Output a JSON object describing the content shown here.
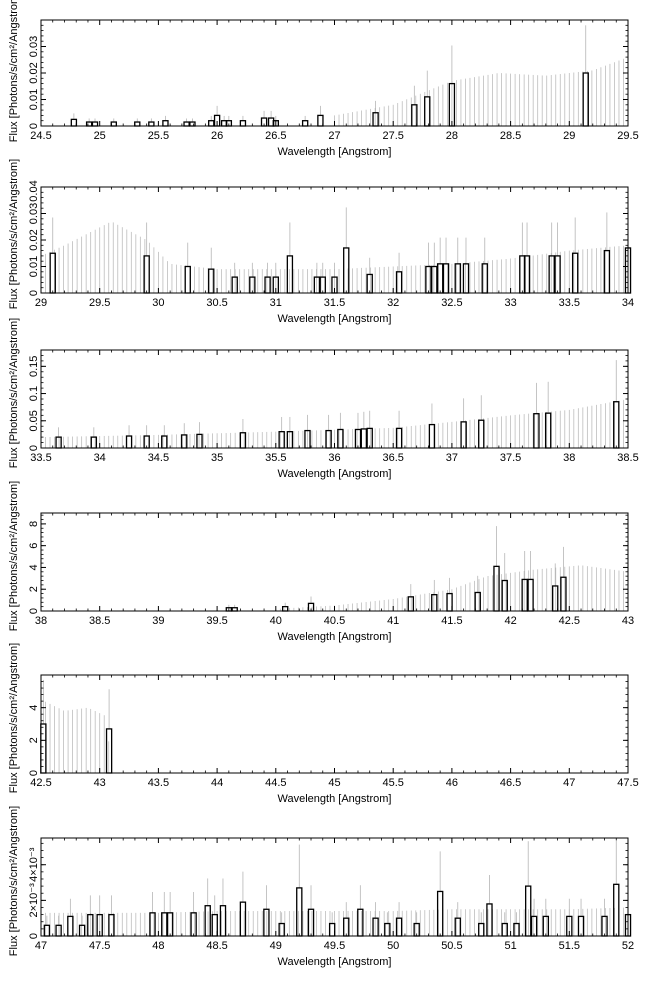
{
  "chart_data": [
    {
      "type": "bar",
      "xlabel": "Wavelength [Angstrom]",
      "ylabel": "Flux [Photons/s/cm²/Angstrom]",
      "xlim": [
        24.5,
        29.5
      ],
      "ylim": [
        0,
        0.04
      ],
      "xticks": [
        "24.5",
        "25",
        "25.5",
        "26",
        "26.5",
        "27",
        "27.5",
        "28",
        "28.5",
        "29",
        "29.5"
      ],
      "yticks": [
        "0",
        "0.01",
        "0.02",
        "0.03"
      ],
      "ytick_values": [
        0,
        0.01,
        0.02,
        0.03
      ],
      "bars": [
        [
          24.78,
          0.0025
        ],
        [
          24.91,
          0.0015
        ],
        [
          24.96,
          0.0015
        ],
        [
          25.12,
          0.0015
        ],
        [
          25.32,
          0.0015
        ],
        [
          25.44,
          0.0015
        ],
        [
          25.56,
          0.002
        ],
        [
          25.74,
          0.0015
        ],
        [
          25.79,
          0.0015
        ],
        [
          25.95,
          0.002
        ],
        [
          26.0,
          0.004
        ],
        [
          26.06,
          0.002
        ],
        [
          26.1,
          0.002
        ],
        [
          26.22,
          0.002
        ],
        [
          26.4,
          0.003
        ],
        [
          26.46,
          0.003
        ],
        [
          26.5,
          0.002
        ],
        [
          26.75,
          0.002
        ],
        [
          26.88,
          0.004
        ],
        [
          27.35,
          0.005
        ],
        [
          27.68,
          0.008
        ],
        [
          27.79,
          0.011
        ],
        [
          28.0,
          0.016
        ],
        [
          29.14,
          0.02
        ]
      ],
      "upper_envelope": [
        [
          27.0,
          0.004
        ],
        [
          27.5,
          0.008
        ],
        [
          28.0,
          0.017
        ],
        [
          28.4,
          0.02
        ],
        [
          28.8,
          0.019
        ],
        [
          29.2,
          0.021
        ],
        [
          29.5,
          0.026
        ]
      ],
      "envelope_start": 27.0
    },
    {
      "type": "bar",
      "xlabel": "Wavelength [Angstrom]",
      "ylabel": "Flux [Photons/s/cm²/Angstrom]",
      "xlim": [
        29,
        34
      ],
      "ylim": [
        0,
        0.04
      ],
      "xticks": [
        "29",
        "29.5",
        "30",
        "30.5",
        "31",
        "31.5",
        "32",
        "32.5",
        "33",
        "33.5",
        "34"
      ],
      "yticks": [
        "0",
        "0.01",
        "0.02",
        "0.03",
        "0.04"
      ],
      "ytick_values": [
        0,
        0.01,
        0.02,
        0.03,
        0.04
      ],
      "bars": [
        [
          29.1,
          0.015
        ],
        [
          29.9,
          0.014
        ],
        [
          30.25,
          0.01
        ],
        [
          30.45,
          0.009
        ],
        [
          30.65,
          0.006
        ],
        [
          30.8,
          0.006
        ],
        [
          30.93,
          0.006
        ],
        [
          31.0,
          0.006
        ],
        [
          31.12,
          0.014
        ],
        [
          31.35,
          0.006
        ],
        [
          31.4,
          0.006
        ],
        [
          31.5,
          0.006
        ],
        [
          31.6,
          0.017
        ],
        [
          31.8,
          0.007
        ],
        [
          32.05,
          0.008
        ],
        [
          32.3,
          0.01
        ],
        [
          32.35,
          0.01
        ],
        [
          32.4,
          0.011
        ],
        [
          32.45,
          0.011
        ],
        [
          32.55,
          0.011
        ],
        [
          32.62,
          0.011
        ],
        [
          32.78,
          0.011
        ],
        [
          33.1,
          0.014
        ],
        [
          33.14,
          0.014
        ],
        [
          33.35,
          0.014
        ],
        [
          33.4,
          0.014
        ],
        [
          33.55,
          0.015
        ],
        [
          33.82,
          0.016
        ],
        [
          34.0,
          0.017
        ]
      ],
      "upper_envelope": [
        [
          29.0,
          0.014
        ],
        [
          29.2,
          0.018
        ],
        [
          29.6,
          0.027
        ],
        [
          29.9,
          0.02
        ],
        [
          30.1,
          0.011
        ],
        [
          30.5,
          0.009
        ],
        [
          31.0,
          0.009
        ],
        [
          31.5,
          0.009
        ],
        [
          32.0,
          0.01
        ],
        [
          32.5,
          0.011
        ],
        [
          33.0,
          0.013
        ],
        [
          33.5,
          0.016
        ],
        [
          34.0,
          0.018
        ]
      ],
      "envelope_start": 29.0
    },
    {
      "type": "bar",
      "xlabel": "Wavelength [Angstrom]",
      "ylabel": "Flux [Photons/s/cm²/Angstrom]",
      "xlim": [
        33.5,
        38.5
      ],
      "ylim": [
        0,
        0.18
      ],
      "xticks": [
        "33.5",
        "34",
        "34.5",
        "35",
        "35.5",
        "36",
        "36.5",
        "37",
        "37.5",
        "38",
        "38.5"
      ],
      "yticks": [
        "0",
        "0.05",
        "0.1",
        "0.15"
      ],
      "ytick_values": [
        0,
        0.05,
        0.1,
        0.15
      ],
      "bars": [
        [
          33.65,
          0.02
        ],
        [
          33.95,
          0.02
        ],
        [
          34.25,
          0.022
        ],
        [
          34.4,
          0.022
        ],
        [
          34.55,
          0.022
        ],
        [
          34.72,
          0.024
        ],
        [
          34.85,
          0.025
        ],
        [
          35.22,
          0.028
        ],
        [
          35.55,
          0.03
        ],
        [
          35.62,
          0.03
        ],
        [
          35.77,
          0.032
        ],
        [
          35.95,
          0.032
        ],
        [
          36.05,
          0.034
        ],
        [
          36.2,
          0.034
        ],
        [
          36.25,
          0.035
        ],
        [
          36.3,
          0.036
        ],
        [
          36.55,
          0.036
        ],
        [
          36.83,
          0.043
        ],
        [
          37.1,
          0.048
        ],
        [
          37.25,
          0.051
        ],
        [
          37.72,
          0.063
        ],
        [
          37.82,
          0.064
        ],
        [
          38.4,
          0.085
        ]
      ],
      "upper_envelope": [
        [
          33.5,
          0.02
        ],
        [
          34.5,
          0.024
        ],
        [
          35.5,
          0.03
        ],
        [
          36.5,
          0.037
        ],
        [
          37.0,
          0.048
        ],
        [
          37.5,
          0.06
        ],
        [
          38.0,
          0.07
        ],
        [
          38.5,
          0.09
        ]
      ],
      "envelope_start": 33.5
    },
    {
      "type": "bar",
      "xlabel": "Wavelength [Angstrom]",
      "ylabel": "Flux [Photons/s/cm²/Angstrom]",
      "xlim": [
        38,
        43
      ],
      "ylim": [
        0,
        9
      ],
      "xticks": [
        "38",
        "38.5",
        "39",
        "39.5",
        "40",
        "40.5",
        "41",
        "41.5",
        "42",
        "42.5",
        "43"
      ],
      "yticks": [
        "0",
        "2",
        "4",
        "6",
        "8"
      ],
      "ytick_values": [
        0,
        2,
        4,
        6,
        8
      ],
      "bars": [
        [
          39.6,
          0.3
        ],
        [
          39.65,
          0.3
        ],
        [
          40.08,
          0.4
        ],
        [
          40.3,
          0.7
        ],
        [
          41.15,
          1.3
        ],
        [
          41.35,
          1.5
        ],
        [
          41.48,
          1.6
        ],
        [
          41.72,
          1.7
        ],
        [
          41.88,
          4.1
        ],
        [
          41.95,
          2.8
        ],
        [
          42.12,
          2.9
        ],
        [
          42.17,
          2.9
        ],
        [
          42.38,
          2.3
        ],
        [
          42.45,
          3.1
        ]
      ],
      "upper_envelope": [
        [
          40.0,
          0.2
        ],
        [
          40.5,
          0.5
        ],
        [
          41.0,
          1.1
        ],
        [
          41.5,
          2.0
        ],
        [
          41.8,
          3.2
        ],
        [
          42.2,
          3.8
        ],
        [
          42.6,
          4.2
        ],
        [
          43.0,
          3.6
        ]
      ],
      "envelope_start": 40.0
    },
    {
      "type": "bar",
      "xlabel": "Wavelength [Angstrom]",
      "ylabel": "Flux [Photons/s/cm²/Angstrom]",
      "xlim": [
        42.5,
        47.5
      ],
      "ylim": [
        0,
        6
      ],
      "xticks": [
        "42.5",
        "43",
        "43.5",
        "44",
        "44.5",
        "45",
        "45.5",
        "46",
        "46.5",
        "47",
        "47.5"
      ],
      "yticks": [
        "0",
        "2",
        "4"
      ],
      "ytick_values": [
        0,
        2,
        4
      ],
      "bars": [
        [
          42.52,
          3.0
        ],
        [
          43.08,
          2.7
        ]
      ],
      "upper_envelope": [
        [
          42.5,
          4.5
        ],
        [
          42.7,
          3.8
        ],
        [
          42.9,
          4.0
        ],
        [
          43.05,
          3.5
        ],
        [
          43.1,
          0.6
        ]
      ],
      "envelope_start": 42.5
    },
    {
      "type": "bar",
      "xlabel": "Wavelength [Angstrom]",
      "ylabel": "Flux [Photons/s/cm²/Angstrom]",
      "xlim": [
        47,
        52
      ],
      "ylim": [
        0,
        0.0055
      ],
      "xticks": [
        "47",
        "47.5",
        "48",
        "48.5",
        "49",
        "49.5",
        "50",
        "50.5",
        "51",
        "51.5",
        "52"
      ],
      "yticks": [
        "0",
        "2×10⁻³",
        "4×10⁻³"
      ],
      "ytick_values": [
        0,
        0.002,
        0.004
      ],
      "bars": [
        [
          47.05,
          0.0006
        ],
        [
          47.15,
          0.0006
        ],
        [
          47.25,
          0.0011
        ],
        [
          47.35,
          0.0006
        ],
        [
          47.42,
          0.0012
        ],
        [
          47.5,
          0.0012
        ],
        [
          47.6,
          0.0012
        ],
        [
          47.95,
          0.0013
        ],
        [
          48.05,
          0.0013
        ],
        [
          48.1,
          0.0013
        ],
        [
          48.3,
          0.0013
        ],
        [
          48.42,
          0.0017
        ],
        [
          48.48,
          0.0012
        ],
        [
          48.55,
          0.0017
        ],
        [
          48.72,
          0.0019
        ],
        [
          48.92,
          0.0015
        ],
        [
          49.05,
          0.0007
        ],
        [
          49.2,
          0.0027
        ],
        [
          49.3,
          0.0015
        ],
        [
          49.48,
          0.0007
        ],
        [
          49.6,
          0.001
        ],
        [
          49.72,
          0.0015
        ],
        [
          49.85,
          0.001
        ],
        [
          49.95,
          0.0007
        ],
        [
          50.05,
          0.001
        ],
        [
          50.2,
          0.0007
        ],
        [
          50.4,
          0.0025
        ],
        [
          50.55,
          0.001
        ],
        [
          50.75,
          0.0007
        ],
        [
          50.82,
          0.0018
        ],
        [
          50.95,
          0.0007
        ],
        [
          51.05,
          0.0007
        ],
        [
          51.15,
          0.0028
        ],
        [
          51.2,
          0.0011
        ],
        [
          51.3,
          0.0011
        ],
        [
          51.5,
          0.0011
        ],
        [
          51.6,
          0.0011
        ],
        [
          51.8,
          0.0011
        ],
        [
          51.9,
          0.0029
        ],
        [
          52.0,
          0.0012
        ]
      ],
      "upper_envelope": [
        [
          47.0,
          0.0013
        ],
        [
          47.5,
          0.0013
        ],
        [
          48.0,
          0.0013
        ],
        [
          48.5,
          0.0014
        ],
        [
          49.0,
          0.0014
        ],
        [
          49.5,
          0.0014
        ],
        [
          50.0,
          0.0014
        ],
        [
          50.5,
          0.0015
        ],
        [
          51.0,
          0.0015
        ],
        [
          51.5,
          0.0015
        ],
        [
          52.0,
          0.0016
        ]
      ],
      "envelope_start": 47.0
    }
  ]
}
